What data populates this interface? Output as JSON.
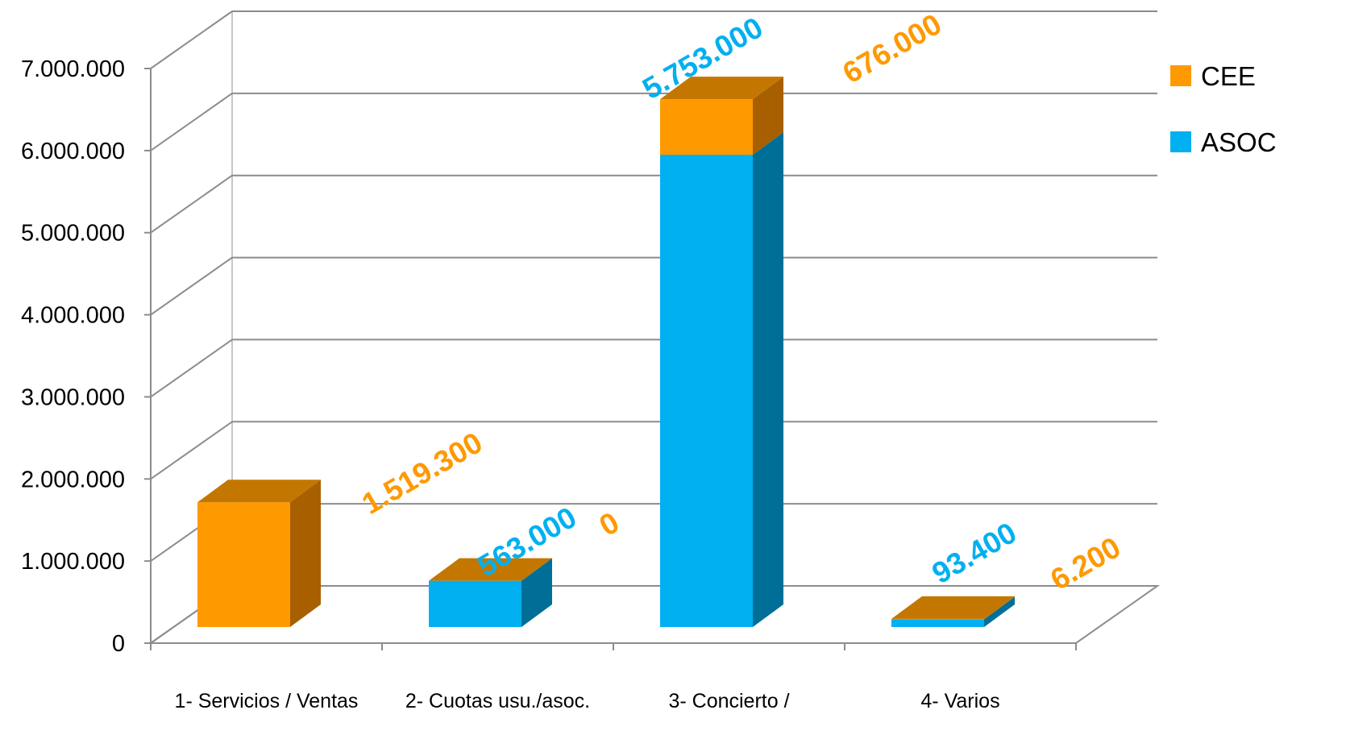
{
  "chart_data": {
    "type": "bar",
    "stacked": true,
    "three_d": true,
    "categories": [
      "1- Servicios / Ventas",
      "2- Cuotas usu./asoc.",
      "3- Concierto /",
      "4- Varios"
    ],
    "series": [
      {
        "name": "ASOC",
        "color": "#00B0F0",
        "side_color": "#006F98",
        "values": [
          0,
          563000,
          5753000,
          93400
        ],
        "labels": [
          "",
          "563.000",
          "5.753.000",
          "93.400"
        ]
      },
      {
        "name": "CEE",
        "color": "#FF9900",
        "side_color": "#A85F00",
        "top_color": "#C47700",
        "values": [
          1519300,
          0,
          676000,
          6200
        ],
        "labels": [
          "1.519.300",
          "0",
          "676.000",
          "6.200"
        ]
      }
    ],
    "y_ticks": [
      {
        "value": 0,
        "label": "0"
      },
      {
        "value": 1000000,
        "label": "1.000.000"
      },
      {
        "value": 2000000,
        "label": "2.000.000"
      },
      {
        "value": 3000000,
        "label": "3.000.000"
      },
      {
        "value": 4000000,
        "label": "4.000.000"
      },
      {
        "value": 5000000,
        "label": "5.000.000"
      },
      {
        "value": 6000000,
        "label": "6.000.000"
      },
      {
        "value": 7000000,
        "label": "7.000.000"
      }
    ],
    "ylim": [
      0,
      7000000
    ],
    "grid": true,
    "legend": {
      "position": "top-right",
      "entries": [
        "CEE",
        "ASOC"
      ]
    },
    "title": "",
    "xlabel": "",
    "ylabel": ""
  }
}
